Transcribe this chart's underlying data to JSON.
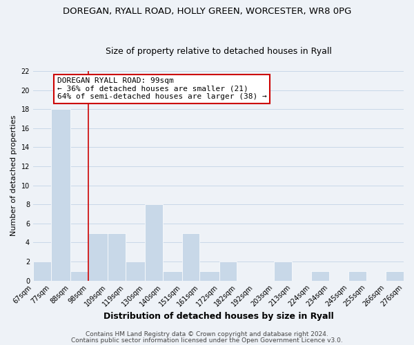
{
  "title": "DOREGAN, RYALL ROAD, HOLLY GREEN, WORCESTER, WR8 0PG",
  "subtitle": "Size of property relative to detached houses in Ryall",
  "xlabel": "Distribution of detached houses by size in Ryall",
  "ylabel": "Number of detached properties",
  "bar_left_edges": [
    67,
    77,
    88,
    98,
    109,
    119,
    130,
    140,
    151,
    161,
    172,
    182,
    192,
    203,
    213,
    224,
    234,
    245,
    255,
    266,
    266
  ],
  "bar_widths": [
    10,
    11,
    10,
    11,
    10,
    11,
    10,
    11,
    10,
    11,
    10,
    10,
    11,
    10,
    11,
    10,
    11,
    10,
    11,
    10,
    10
  ],
  "bar_heights": [
    2,
    18,
    1,
    5,
    5,
    2,
    8,
    1,
    5,
    1,
    2,
    0,
    0,
    2,
    0,
    1,
    0,
    1,
    0,
    1,
    1
  ],
  "bar_color": "#c8d8e8",
  "bar_edgecolor": "#ffffff",
  "grid_color": "#c8d8e8",
  "vline_x": 98,
  "vline_color": "#cc0000",
  "annotation_text": "DOREGAN RYALL ROAD: 99sqm\n← 36% of detached houses are smaller (21)\n64% of semi-detached houses are larger (38) →",
  "ylim": [
    0,
    22
  ],
  "yticks": [
    0,
    2,
    4,
    6,
    8,
    10,
    12,
    14,
    16,
    18,
    20,
    22
  ],
  "xtick_labels": [
    "67sqm",
    "77sqm",
    "88sqm",
    "98sqm",
    "109sqm",
    "119sqm",
    "130sqm",
    "140sqm",
    "151sqm",
    "161sqm",
    "172sqm",
    "182sqm",
    "192sqm",
    "203sqm",
    "213sqm",
    "224sqm",
    "234sqm",
    "245sqm",
    "255sqm",
    "266sqm",
    "276sqm"
  ],
  "xtick_positions": [
    67,
    77,
    88,
    98,
    109,
    119,
    130,
    140,
    151,
    161,
    172,
    182,
    192,
    203,
    213,
    224,
    234,
    245,
    255,
    266,
    276
  ],
  "footer1": "Contains HM Land Registry data © Crown copyright and database right 2024.",
  "footer2": "Contains public sector information licensed under the Open Government Licence v3.0.",
  "title_fontsize": 9.5,
  "subtitle_fontsize": 9,
  "xlabel_fontsize": 9,
  "ylabel_fontsize": 8,
  "tick_fontsize": 7,
  "annotation_fontsize": 8,
  "footer_fontsize": 6.5,
  "background_color": "#eef2f7",
  "xlim_left": 67,
  "xlim_right": 276
}
